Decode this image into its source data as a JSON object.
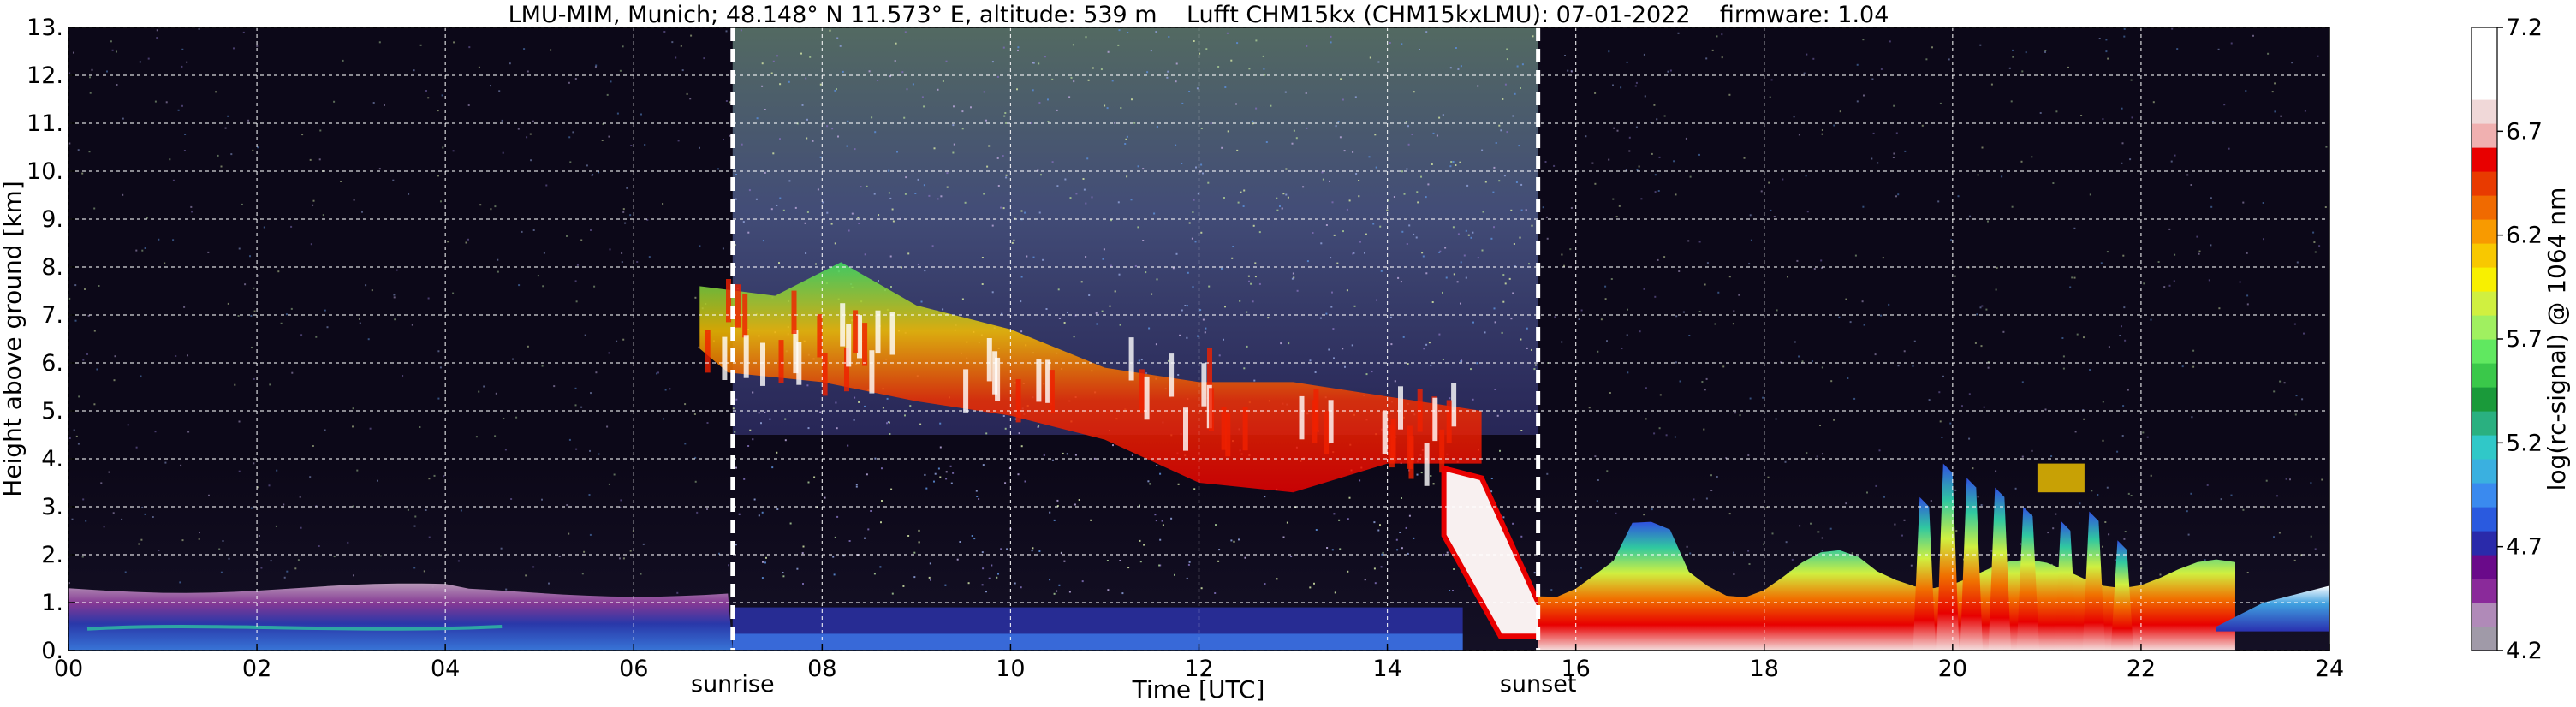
{
  "chart_data": {
    "type": "heatmap",
    "title": "LMU-MIM, Munich; 48.148° N 11.573° E, altitude: 539 m    Lufft CHM15kx (CHM15kxLMU): 07-01-2022    firmware: 1.04",
    "xlabel": "Time [UTC]",
    "ylabel": "Height above ground [km]",
    "colorbar_label": "log(rc-signal) @ 1064 nm",
    "xlim": [
      0,
      24
    ],
    "ylim": [
      0,
      13
    ],
    "x_ticks": [
      0,
      2,
      4,
      6,
      8,
      10,
      12,
      14,
      16,
      18,
      20,
      22,
      24
    ],
    "x_tick_labels": [
      "00",
      "02",
      "04",
      "06",
      "08",
      "10",
      "12",
      "14",
      "16",
      "18",
      "20",
      "22",
      "24"
    ],
    "y_ticks": [
      0,
      1,
      2,
      3,
      4,
      5,
      6,
      7,
      8,
      9,
      10,
      11,
      12,
      13
    ],
    "y_tick_labels": [
      "0.",
      "1.",
      "2.",
      "3.",
      "4.",
      "5.",
      "6.",
      "7.",
      "8.",
      "9.",
      "10.",
      "11.",
      "12.",
      "13."
    ],
    "grid": true,
    "colorbar": {
      "min": 4.2,
      "max": 7.2,
      "ticks": [
        4.2,
        4.7,
        5.2,
        5.7,
        6.2,
        6.7,
        7.2
      ],
      "tick_labels": [
        "4.2",
        "4.7",
        "5.2",
        "5.7",
        "6.2",
        "6.7",
        "7.2"
      ],
      "colors": [
        "#a09aa8",
        "#b08ab8",
        "#8a2a9a",
        "#6a0a8a",
        "#2a2aaa",
        "#2a5adf",
        "#3a8aef",
        "#3ab0e0",
        "#30c8c8",
        "#2ab080",
        "#1a9a3a",
        "#3ac84a",
        "#60e860",
        "#a0f060",
        "#d0f040",
        "#f8f000",
        "#f8c800",
        "#f89a00",
        "#f06a00",
        "#e83a00",
        "#e80000",
        "#f0b0b0",
        "#f0d8d8",
        "#ffffff",
        "#ffffff",
        "#ffffff"
      ]
    },
    "markers": [
      {
        "label": "sunrise",
        "x": 7.05
      },
      {
        "label": "sunset",
        "x": 15.6
      }
    ],
    "background_color": "#0a0514",
    "features": [
      {
        "name": "boundary-layer",
        "x": [
          0.0,
          7.05
        ],
        "height": [
          0.0,
          1.3
        ]
      },
      {
        "name": "mid-level-cloud",
        "x": [
          6.7,
          15.0
        ],
        "height": [
          3.2,
          8.2
        ]
      },
      {
        "name": "cloud-descent",
        "x": [
          14.6,
          15.6
        ],
        "height": [
          0.3,
          3.8
        ]
      },
      {
        "name": "evening-layer",
        "x": [
          15.6,
          23.0
        ],
        "height": [
          0.0,
          2.3
        ]
      },
      {
        "name": "convective-cells",
        "x": [
          19.6,
          22.0
        ],
        "height": [
          0.0,
          4.0
        ]
      },
      {
        "name": "late-layer",
        "x": [
          22.8,
          24.0
        ],
        "height": [
          0.4,
          1.4
        ]
      }
    ]
  }
}
